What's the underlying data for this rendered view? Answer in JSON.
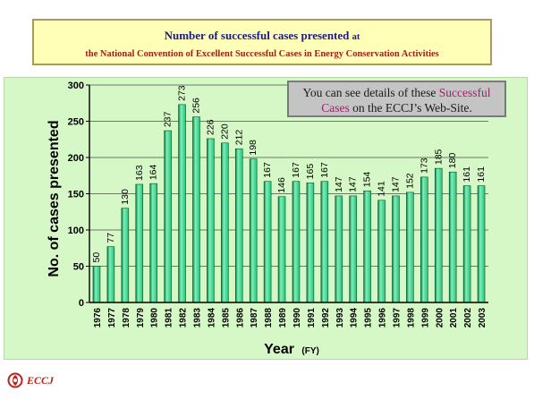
{
  "header": {
    "title_line1": "Number of successful cases presented",
    "title_line1_suffix": "at",
    "title_line2": "the National Convention of Excellent Successful Cases in Energy Conservation Activities"
  },
  "note": {
    "part1": "You can see details of these ",
    "highlight1": "Successful",
    "highlight2": "Cases",
    "part2": " on the ECCJ’s Web-Site."
  },
  "logo": {
    "text": "ECCJ",
    "color": "#c0201a"
  },
  "colors": {
    "bar": "#22c47a",
    "bar_light": "#7ff0b8",
    "bar_dark": "#0a7a40",
    "panel": "#d6f7c6"
  },
  "chart_data": {
    "type": "bar",
    "ylabel": "No. of cases presented",
    "xlabel": "Year",
    "xlabel_unit": "(FY)",
    "ylim": [
      0,
      300
    ],
    "yticks": [
      "0",
      "50",
      "100",
      "150",
      "200",
      "250",
      "300"
    ],
    "grid": true,
    "categories": [
      "1976",
      "1977",
      "1978",
      "1979",
      "1980",
      "1981",
      "1982",
      "1983",
      "1984",
      "1985",
      "1986",
      "1987",
      "1988",
      "1989",
      "1990",
      "1991",
      "1992",
      "1993",
      "1994",
      "1995",
      "1996",
      "1997",
      "1998",
      "1999",
      "2000",
      "2001",
      "2002",
      "2003"
    ],
    "values": [
      50,
      77,
      130,
      163,
      164,
      237,
      273,
      256,
      226,
      220,
      212,
      198,
      167,
      146,
      167,
      165,
      167,
      147,
      147,
      154,
      141,
      147,
      152,
      173,
      185,
      180,
      161,
      161
    ],
    "value_labels": [
      "50",
      "77",
      "130",
      "163",
      "164",
      "237",
      "273",
      "256",
      "226",
      "220",
      "212",
      "198",
      "167",
      "146",
      "167",
      "165",
      "167",
      "147",
      "147",
      "154",
      "141",
      "147",
      "152",
      "173",
      "185",
      "180",
      "161",
      "161"
    ]
  }
}
